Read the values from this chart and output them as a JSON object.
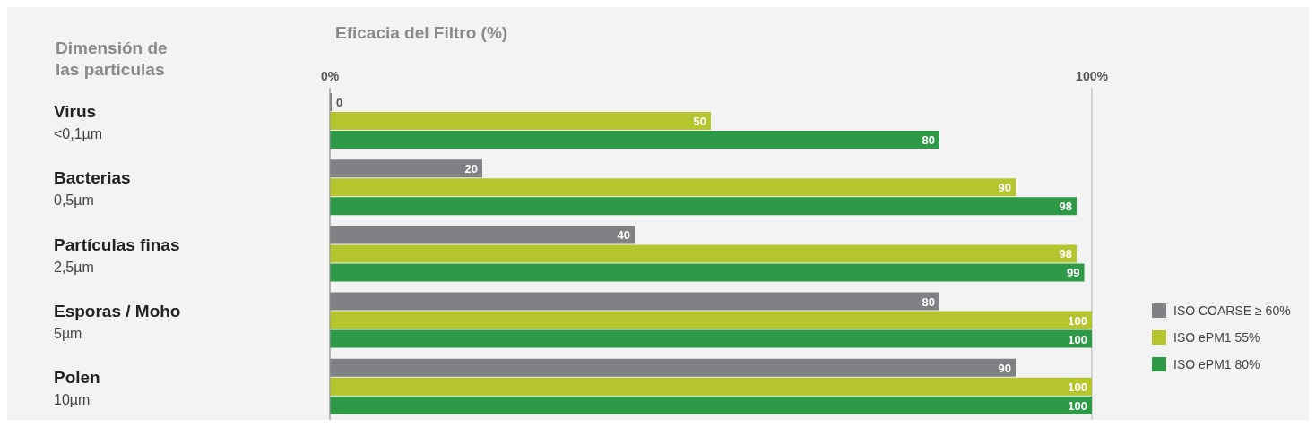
{
  "chart_data": {
    "type": "bar",
    "orientation": "horizontal",
    "xlabel": "Eficacia del Filtro (%)",
    "ylabel": "Dimensión de las partículas",
    "categories": [
      "Virus\n<0,1µm",
      "Bacterias\n0,5µm",
      "Partículas finas\n2,5µm",
      "Esporas / Moho\n5µm",
      "Polen\n10µm"
    ],
    "series": [
      {
        "name": "ISO COARSE ≥ 60%",
        "color": "#808184",
        "values": [
          0,
          20,
          40,
          80,
          90
        ]
      },
      {
        "name": "ISO ePM1 55%",
        "color": "#b5c52d",
        "values": [
          50,
          90,
          98,
          100,
          100
        ]
      },
      {
        "name": "ISO ePM1 80%",
        "color": "#2e9a47",
        "values": [
          80,
          98,
          99,
          100,
          100
        ]
      }
    ],
    "xlim": [
      0,
      100
    ],
    "xticks": [
      {
        "value": 0,
        "label": "0%"
      },
      {
        "value": 100,
        "label": "100%"
      }
    ],
    "grid": "x",
    "legend": "bottom right",
    "data_labels": true
  }
}
